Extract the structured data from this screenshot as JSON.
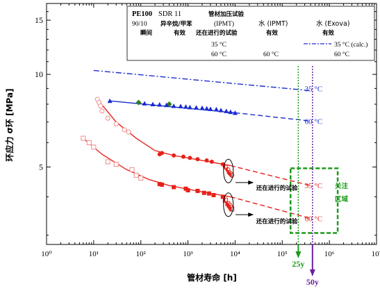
{
  "chart_data": {
    "type": "scatter",
    "xscale": "log",
    "yscale": "log",
    "xlim": [
      1,
      10000000
    ],
    "ylim": [
      2.8,
      17
    ],
    "x_ticks": [
      1,
      10,
      100,
      1000,
      10000,
      100000,
      1000000,
      10000000
    ],
    "x_tick_labels": [
      "10⁰",
      "10¹",
      "10²",
      "10³",
      "10⁴",
      "10⁵",
      "10⁶",
      "10⁷"
    ],
    "y_ticks": [
      5,
      10,
      15
    ],
    "y_tick_labels": [
      "5",
      "10",
      "15"
    ],
    "xlabel": "管材寿命 [h]",
    "ylabel": "环应力 σ环 [MPa]",
    "legend": {
      "title_left_bold": "PE100",
      "title_left": "SDR 11",
      "subtitle_left": "90/10",
      "subtitle_mid": "异辛烷/甲苯",
      "title_mid": "管材加压试验",
      "title_mid2": "(IPMT)",
      "title_water1": "水 (IPMT)",
      "title_water2": "水 (Exova)",
      "col_instant": "瞬间",
      "col_valid": "有效",
      "col_running": "还在进行的试验",
      "col_valid2": "有效",
      "col_valid3": "有效",
      "label_35": "35 °C",
      "label_60": "60 °C",
      "label_35calc": "35 °C (calc.)",
      "label_60b": "60 °C",
      "label_60c": "60 °C"
    },
    "colors": {
      "red": "#e8201a",
      "pink": "#f08a8a",
      "blue": "#1a2bd0",
      "green": "#2e7d20",
      "purple": "#6a1fa0",
      "dashgreen": "#1a9a1a"
    },
    "series": [
      {
        "name": "35 °C",
        "group": "瞬间",
        "marker": "open-circle",
        "color": "#f08a8a",
        "points": [
          [
            12,
            8.3
          ],
          [
            13,
            8.1
          ],
          [
            14,
            7.9
          ],
          [
            15,
            7.6
          ],
          [
            20,
            7.2
          ],
          [
            30,
            6.9
          ],
          [
            45,
            6.6
          ],
          [
            55,
            6.5
          ]
        ]
      },
      {
        "name": "60 °C",
        "group": "瞬间",
        "marker": "open-square",
        "color": "#f08a8a",
        "points": [
          [
            6,
            6.2
          ],
          [
            8,
            6.0
          ],
          [
            10,
            5.8
          ],
          [
            20,
            5.2
          ],
          [
            30,
            5.1
          ],
          [
            65,
            4.9
          ],
          [
            80,
            4.7
          ],
          [
            100,
            4.6
          ]
        ]
      },
      {
        "name": "35 °C",
        "group": "有效",
        "marker": "filled-circle",
        "color": "#e8201a",
        "points": [
          [
            250,
            5.5
          ],
          [
            280,
            5.55
          ],
          [
            500,
            5.45
          ],
          [
            800,
            5.4
          ],
          [
            1100,
            5.35
          ],
          [
            1600,
            5.3
          ],
          [
            2500,
            5.25
          ],
          [
            3200,
            5.2
          ],
          [
            5500,
            5.1
          ]
        ]
      },
      {
        "name": "60 °C",
        "group": "有效",
        "marker": "filled-square",
        "color": "#e8201a",
        "points": [
          [
            250,
            4.4
          ],
          [
            280,
            4.38
          ],
          [
            500,
            4.3
          ],
          [
            900,
            4.25
          ],
          [
            1000,
            4.2
          ],
          [
            1600,
            4.18
          ],
          [
            2200,
            4.12
          ],
          [
            2800,
            4.1
          ],
          [
            3500,
            4.05
          ],
          [
            5500,
            4.0
          ]
        ]
      },
      {
        "name": "35 °C",
        "group": "还在进行的试验",
        "marker": "half-circle",
        "color": "#e8201a",
        "points": [
          [
            6200,
            5.0
          ],
          [
            7000,
            4.9
          ],
          [
            7500,
            4.8
          ],
          [
            8000,
            4.75
          ],
          [
            8500,
            4.7
          ]
        ]
      },
      {
        "name": "60 °C",
        "group": "还在进行的试验",
        "marker": "half-square",
        "color": "#e8201a",
        "points": [
          [
            6200,
            3.9
          ],
          [
            7000,
            3.8
          ],
          [
            7500,
            3.75
          ],
          [
            8000,
            3.7
          ],
          [
            8500,
            3.65
          ]
        ]
      },
      {
        "name": "60 °C",
        "group": "水 (IPMT)",
        "marker": "filled-diamond",
        "color": "#2e7d20",
        "points": [
          [
            90,
            8.1
          ],
          [
            400,
            8.0
          ]
        ]
      },
      {
        "name": "60 °C",
        "group": "水 (Exova)",
        "marker": "filled-triangle",
        "color": "#1a2bd0",
        "points": [
          [
            22,
            8.2
          ],
          [
            120,
            8.05
          ],
          [
            180,
            8.0
          ],
          [
            250,
            7.98
          ],
          [
            350,
            7.95
          ],
          [
            500,
            7.9
          ],
          [
            700,
            7.88
          ],
          [
            900,
            7.85
          ],
          [
            1100,
            7.82
          ],
          [
            1500,
            7.8
          ],
          [
            2000,
            7.78
          ],
          [
            2500,
            7.75
          ],
          [
            3000,
            7.72
          ],
          [
            4000,
            7.7
          ],
          [
            5000,
            7.65
          ],
          [
            6500,
            7.6
          ],
          [
            8000,
            7.55
          ],
          [
            10000,
            7.5
          ]
        ]
      }
    ],
    "lines": [
      {
        "name": "35 °C (calc.)",
        "style": "dash-dot",
        "color": "#1a2bd0",
        "points": [
          [
            10,
            10.3
          ],
          [
            400000,
            8.85
          ]
        ]
      },
      {
        "name": "60 °C fit",
        "style": "solid",
        "color": "#1a2bd0",
        "points": [
          [
            22,
            8.2
          ],
          [
            10000,
            7.5
          ]
        ]
      },
      {
        "name": "60 °C extrapolation",
        "style": "dash",
        "color": "#1a2bd0",
        "points": [
          [
            10000,
            7.5
          ],
          [
            400000,
            7.05
          ]
        ]
      },
      {
        "name": "35 °C fit",
        "style": "solid",
        "color": "#e8201a",
        "points": [
          [
            12,
            8.3
          ],
          [
            30,
            7.0
          ],
          [
            80,
            6.2
          ],
          [
            200,
            5.65
          ],
          [
            500,
            5.45
          ],
          [
            2000,
            5.25
          ],
          [
            8000,
            5.05
          ]
        ]
      },
      {
        "name": "35 °C extrapolation",
        "style": "dash",
        "color": "#e8201a",
        "points": [
          [
            8000,
            5.05
          ],
          [
            400000,
            4.35
          ]
        ]
      },
      {
        "name": "60 °C fit",
        "style": "solid",
        "color": "#e8201a",
        "points": [
          [
            6,
            6.2
          ],
          [
            15,
            5.5
          ],
          [
            50,
            4.9
          ],
          [
            150,
            4.55
          ],
          [
            400,
            4.35
          ],
          [
            2000,
            4.15
          ],
          [
            8000,
            4.0
          ]
        ]
      },
      {
        "name": "60 °C extrapolation",
        "style": "dash",
        "color": "#e8201a",
        "points": [
          [
            8000,
            4.0
          ],
          [
            400000,
            3.4
          ]
        ]
      }
    ],
    "annotations": [
      {
        "text": "35 °C",
        "color": "#1a2bd0",
        "x": 700000,
        "y": 9.0
      },
      {
        "text": "60 °C",
        "color": "#1a2bd0",
        "x": 700000,
        "y": 7.05
      },
      {
        "text": "35 °C",
        "color": "#e8201a",
        "x": 700000,
        "y": 4.35
      },
      {
        "text": "60 °C",
        "color": "#e8201a",
        "x": 700000,
        "y": 3.4
      },
      {
        "text": "还在进行的试验",
        "color": "#000000",
        "x": 30000,
        "y": 4.3
      },
      {
        "text": "还在进行的试验",
        "color": "#000000",
        "x": 30000,
        "y": 3.35
      },
      {
        "text": "关注",
        "color": "#1a9a1a",
        "x": 1800000,
        "y": 4.35
      },
      {
        "text": "区域",
        "color": "#1a9a1a",
        "x": 1800000,
        "y": 3.95
      },
      {
        "text": "25y",
        "color": "#1a9a1a",
        "x": 219000,
        "y": null
      },
      {
        "text": "50y",
        "color": "#6a1fa0",
        "x": 438000,
        "y": null
      }
    ],
    "region_of_interest": {
      "x": [
        150000,
        1500000
      ],
      "y": [
        3.05,
        4.95
      ],
      "color": "#1a9a1a"
    },
    "vlines": [
      {
        "x": 219000,
        "label": "25y",
        "color": "#1a9a1a"
      },
      {
        "x": 438000,
        "label": "50y",
        "color": "#6a1fa0"
      }
    ]
  }
}
